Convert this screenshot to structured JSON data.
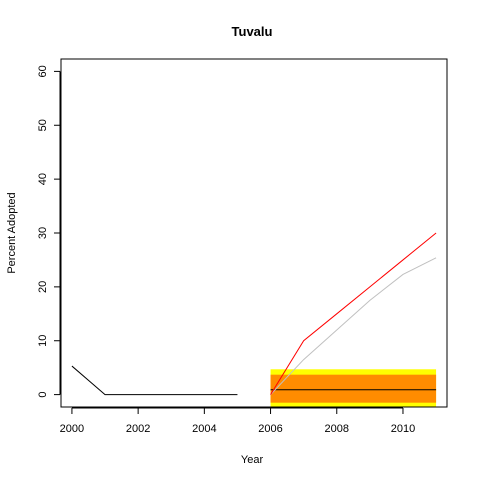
{
  "chart_data": {
    "type": "line",
    "title": "Tuvalu",
    "xlabel": "Year",
    "ylabel": "Percent Adopted",
    "xlim": [
      2000,
      2011
    ],
    "ylim": [
      -2.3,
      62.3
    ],
    "x_ticks": [
      "2000",
      "2002",
      "2004",
      "2006",
      "2008",
      "2010"
    ],
    "y_ticks": [
      "0",
      "10",
      "20",
      "30",
      "40",
      "50",
      "60"
    ],
    "grid": false,
    "bands": [
      {
        "x": [
          2006,
          2011
        ],
        "y": [
          -2.3,
          4.7
        ],
        "color": "#ffff00"
      },
      {
        "x": [
          2006,
          2011
        ],
        "y": [
          -1.5,
          3.7
        ],
        "color": "#ff8c00"
      }
    ],
    "series": [
      {
        "x": [
          2000,
          2001,
          2002,
          2003,
          2004,
          2005
        ],
        "values": [
          5.3,
          0,
          0,
          0,
          0,
          0
        ],
        "color": "#000000"
      },
      {
        "x": [
          2006,
          2007,
          2008,
          2009,
          2010,
          2011
        ],
        "values": [
          0.9,
          0.9,
          0.9,
          0.9,
          0.9,
          0.9
        ],
        "color": "#000000"
      },
      {
        "x": [
          2006,
          2007,
          2008,
          2009,
          2010,
          2011
        ],
        "values": [
          0,
          6.5,
          12.0,
          17.5,
          22.3,
          25.4
        ],
        "color": "#c0c0c0"
      },
      {
        "x": [
          2006,
          2007,
          2008,
          2009,
          2010,
          2011
        ],
        "values": [
          0,
          10.0,
          15.0,
          20.0,
          25.0,
          30.0
        ],
        "color": "#ff0000"
      }
    ]
  }
}
